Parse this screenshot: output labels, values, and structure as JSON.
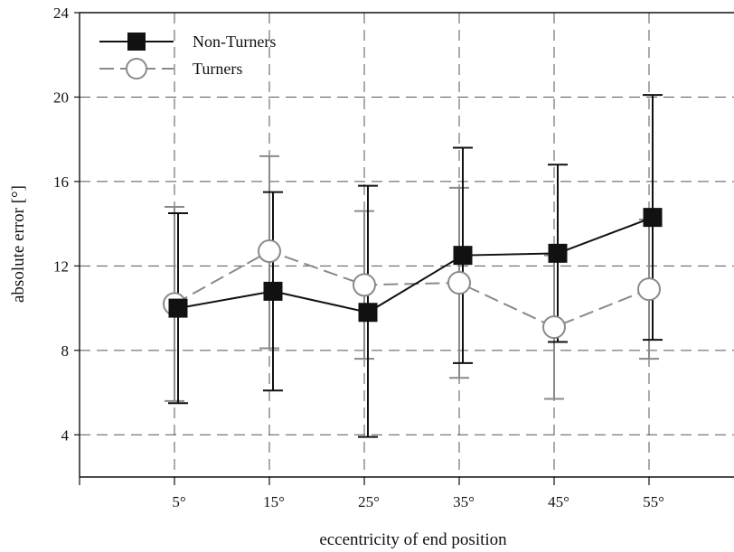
{
  "chart_data": {
    "type": "line",
    "title": "",
    "xlabel": "eccentricity of end position",
    "ylabel": "absolute error [°]",
    "categories": [
      "5°",
      "15°",
      "25°",
      "35°",
      "45°",
      "55°"
    ],
    "ylim": [
      2,
      24
    ],
    "yticks": [
      "4",
      "8",
      "12",
      "16",
      "20",
      "24"
    ],
    "grid": true,
    "legend_position": "top-left",
    "series": [
      {
        "name": "Non-Turners",
        "color": "#111111",
        "marker": "filled-square",
        "line_style": "solid",
        "values": [
          10.0,
          10.8,
          9.8,
          12.5,
          12.6,
          14.3
        ],
        "error_low": [
          5.5,
          6.1,
          3.9,
          7.4,
          8.4,
          8.5
        ],
        "error_high": [
          14.5,
          15.5,
          15.8,
          17.6,
          16.8,
          20.1
        ]
      },
      {
        "name": "Turners",
        "color": "#8a8a8a",
        "marker": "open-circle",
        "line_style": "dashed",
        "values": [
          10.2,
          12.7,
          11.1,
          11.2,
          9.1,
          10.9
        ],
        "error_low": [
          5.6,
          8.1,
          7.6,
          6.7,
          5.7,
          7.6
        ],
        "error_high": [
          14.8,
          17.2,
          14.6,
          15.7,
          12.5,
          14.2
        ]
      }
    ]
  }
}
